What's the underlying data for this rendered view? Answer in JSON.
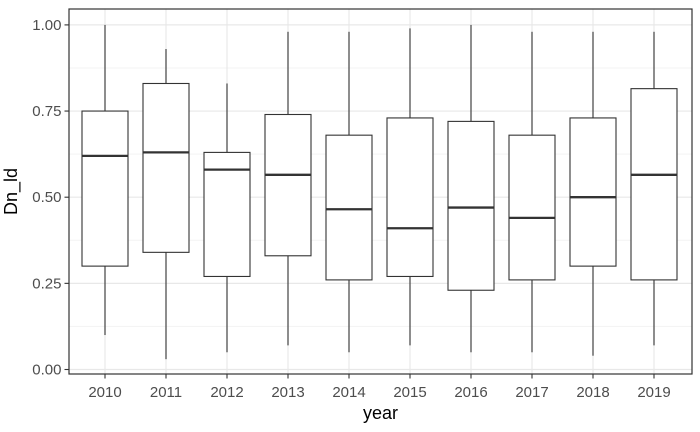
{
  "chart_data": {
    "type": "boxplot",
    "title": "",
    "xlabel": "year",
    "ylabel": "Dn_ld",
    "categories": [
      "2010",
      "2011",
      "2012",
      "2013",
      "2014",
      "2015",
      "2016",
      "2017",
      "2018",
      "2019"
    ],
    "series": [
      {
        "year": "2010",
        "whisker_low": 0.1,
        "q1": 0.3,
        "median": 0.62,
        "q3": 0.75,
        "whisker_high": 1.0
      },
      {
        "year": "2011",
        "whisker_low": 0.03,
        "q1": 0.34,
        "median": 0.63,
        "q3": 0.83,
        "whisker_high": 0.93
      },
      {
        "year": "2012",
        "whisker_low": 0.05,
        "q1": 0.27,
        "median": 0.58,
        "q3": 0.63,
        "whisker_high": 0.83
      },
      {
        "year": "2013",
        "whisker_low": 0.07,
        "q1": 0.33,
        "median": 0.565,
        "q3": 0.74,
        "whisker_high": 0.98
      },
      {
        "year": "2014",
        "whisker_low": 0.05,
        "q1": 0.26,
        "median": 0.465,
        "q3": 0.68,
        "whisker_high": 0.98
      },
      {
        "year": "2015",
        "whisker_low": 0.07,
        "q1": 0.27,
        "median": 0.41,
        "q3": 0.73,
        "whisker_high": 0.99
      },
      {
        "year": "2016",
        "whisker_low": 0.05,
        "q1": 0.23,
        "median": 0.47,
        "q3": 0.72,
        "whisker_high": 1.0
      },
      {
        "year": "2017",
        "whisker_low": 0.05,
        "q1": 0.26,
        "median": 0.44,
        "q3": 0.68,
        "whisker_high": 0.98
      },
      {
        "year": "2018",
        "whisker_low": 0.04,
        "q1": 0.3,
        "median": 0.5,
        "q3": 0.73,
        "whisker_high": 0.98
      },
      {
        "year": "2019",
        "whisker_low": 0.07,
        "q1": 0.26,
        "median": 0.565,
        "q3": 0.815,
        "whisker_high": 0.98
      }
    ],
    "outliers": [],
    "y_axis": {
      "ticks": [
        {
          "label": "0.00",
          "value": 0
        },
        {
          "label": "0.25",
          "value": 0.25
        },
        {
          "label": "0.50",
          "value": 0.5
        },
        {
          "label": "0.75",
          "value": 0.75
        },
        {
          "label": "1.00",
          "value": 1.0
        }
      ],
      "minor_values": [
        0.125,
        0.375,
        0.625,
        0.875
      ],
      "range": [
        0,
        1
      ]
    },
    "ylim": [
      0,
      1
    ],
    "legend": "none",
    "grid": {
      "horizontal_major": true,
      "horizontal_minor": true,
      "vertical_major_per_category": true
    },
    "colors": {
      "background": "#ffffff",
      "panel_background": "#ffffff",
      "panel_border": "#333333",
      "grid_major": "#e8e8e8",
      "grid_minor": "#f3f3f3",
      "box_stroke": "#333333",
      "box_fill": "#ffffff",
      "tick_label": "#4d4d4d",
      "axis_title": "#000000"
    }
  }
}
